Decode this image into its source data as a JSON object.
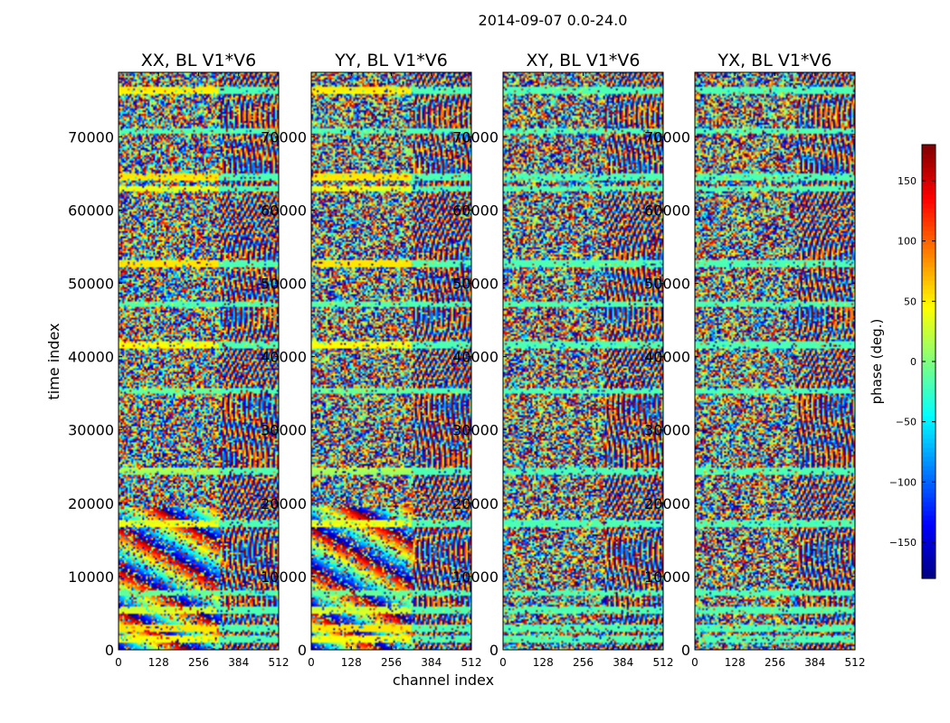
{
  "chart_data": {
    "type": "heatmap",
    "suptitle": "2014-09-07 0.0-24.0",
    "xlabel": "channel index",
    "ylabel": "time index",
    "xlim": [
      0,
      512
    ],
    "ylim": [
      0,
      78800
    ],
    "xticks": [
      0,
      128,
      256,
      384,
      512
    ],
    "yticks": [
      0,
      10000,
      20000,
      30000,
      40000,
      50000,
      60000,
      70000
    ],
    "panels": [
      {
        "title": "XX, BL V1*V6",
        "polarization": "XX"
      },
      {
        "title": "YY, BL V1*V6",
        "polarization": "YY"
      },
      {
        "title": "XY, BL V1*V6",
        "polarization": "XY"
      },
      {
        "title": "YX, BL V1*V6",
        "polarization": "YX"
      }
    ],
    "colorbar": {
      "label": "phase (deg.)",
      "range": [
        -180,
        180
      ],
      "ticks": [
        -150,
        -100,
        -50,
        0,
        50,
        100,
        150
      ],
      "colormap": "jet"
    }
  }
}
